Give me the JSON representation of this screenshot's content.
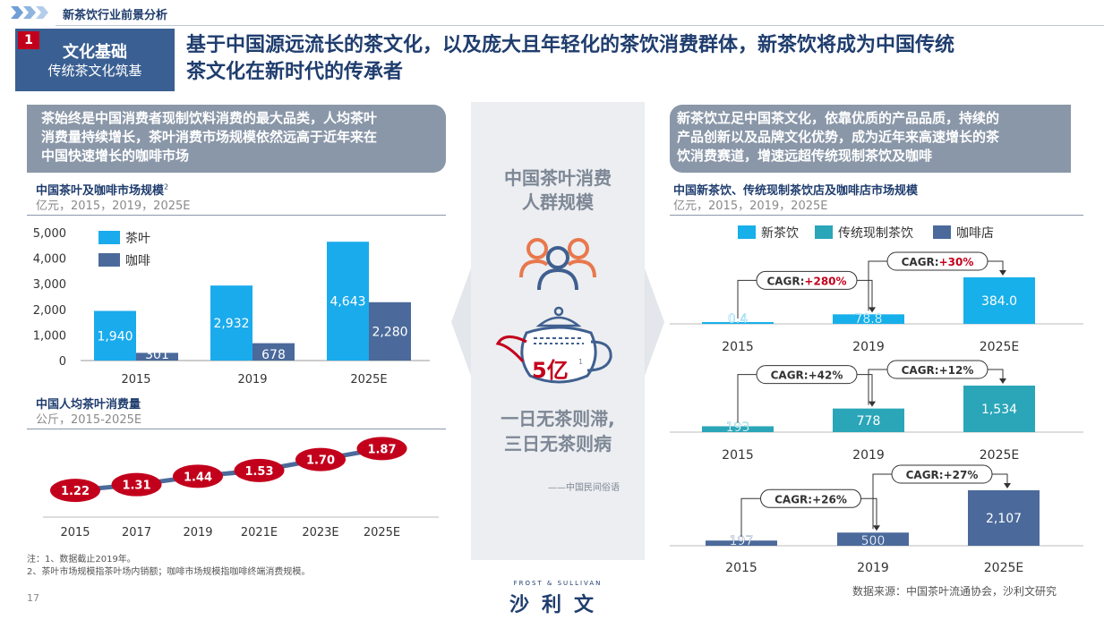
{
  "header": {
    "section_label": "新茶饮行业前景分析",
    "badge_number": "1",
    "badge_title": "文化基础",
    "badge_subtitle": "传统茶文化筑基",
    "headline_line1": "基于中国源远流长的茶文化，以及庞大且年轻化的茶饮消费群体，新茶饮将成为中国传统",
    "headline_line2": "茶文化在新时代的传承者"
  },
  "left": {
    "callout_line1": "茶始终是中国消费者现制饮料消费的最大品类，人均茶叶",
    "callout_line2": "消费量持续增长，茶叶消费市场规模依然远高于近年来在",
    "callout_line3": "中国快速增长的咖啡市场",
    "chart1_title": "中国茶叶及咖啡市场规模",
    "chart1_title_sup": "2",
    "chart1_unit": "亿元，2015，2019，2025E",
    "chart2_title": "中国人均茶叶消费量",
    "chart2_unit": "公斤，2015-2025E"
  },
  "center": {
    "title_line1": "中国茶叶消费",
    "title_line2": "人群规模",
    "value": "5亿",
    "value_sup": "1",
    "saying_line1": "一日无茶则滞,",
    "saying_line2": "三日无茶则病",
    "source": "——中国民间俗语"
  },
  "right": {
    "callout_line1": "新茶饮立足中国茶文化，依靠优质的产品品质，持续的",
    "callout_line2": "产品创新以及品牌文化优势，成为近年来高速增长的茶",
    "callout_line3": "饮消费赛道，增速远超传统现制茶饮及咖啡",
    "chart_title": "中国新茶饮、传统现制茶饮店及咖啡店市场规模",
    "chart_unit": "亿元，2015，2019，2025E"
  },
  "footer": {
    "note1": "注：1、数据截止2019年。",
    "note2": "2、茶叶市场规模指茶叶场内销额；咖啡市场规模指咖啡终端消费规模。",
    "page_number": "17",
    "source": "数据来源：中国茶叶流通协会，沙利文研究",
    "logo_wordmark": "FROST & SULLIVAN",
    "logo_cn": "沙利文"
  },
  "colors": {
    "tea": "#1aabec",
    "coffee": "#4b6a9b",
    "new_tea": "#17b0ea",
    "traditional_tea": "#2aa6b8",
    "coffee_shop": "#4b6a9b",
    "ellipse": "#c3001c",
    "accent": "#1f3d6e"
  },
  "chart_data": [
    {
      "type": "bar",
      "title": "中国茶叶及咖啡市场规模",
      "categories": [
        "2015",
        "2019",
        "2025E"
      ],
      "series": [
        {
          "name": "茶叶",
          "values": [
            1940,
            2932,
            4643
          ],
          "labels": [
            "1,940",
            "2,932",
            "4,643"
          ]
        },
        {
          "name": "咖啡",
          "values": [
            301,
            678,
            2280
          ],
          "labels": [
            "301",
            "678",
            "2,280"
          ]
        }
      ],
      "yticks": [
        "0",
        "1,000",
        "2,000",
        "3,000",
        "4,000",
        "5,000"
      ],
      "ylim": [
        0,
        5000
      ],
      "legend": "top-left"
    },
    {
      "type": "line",
      "title": "中国人均茶叶消费量",
      "x": [
        "2015",
        "2017",
        "2019",
        "2021E",
        "2023E",
        "2025E"
      ],
      "values": [
        1.22,
        1.31,
        1.44,
        1.53,
        1.7,
        1.87
      ],
      "labels": [
        "1.22",
        "1.31",
        "1.44",
        "1.53",
        "1.70",
        "1.87"
      ]
    },
    {
      "type": "bar",
      "title": "中国新茶饮、传统现制茶饮店及咖啡店市场规模",
      "legend_items": [
        "新茶饮",
        "传统现制茶饮",
        "咖啡店"
      ],
      "panels": [
        {
          "name": "新茶饮",
          "categories": [
            "2015",
            "2019",
            "2025E"
          ],
          "values": [
            0.4,
            78.8,
            384.0
          ],
          "labels": [
            "0.4",
            "78.8",
            "384.0"
          ],
          "cagr": [
            {
              "prefix": "CAGR:",
              "value": "+280%",
              "highlight": true
            },
            {
              "prefix": "CAGR:",
              "value": "+30%",
              "highlight": true
            }
          ]
        },
        {
          "name": "传统现制茶饮",
          "categories": [
            "2015",
            "2019",
            "2025E"
          ],
          "values": [
            193,
            778,
            1534
          ],
          "labels": [
            "193",
            "778",
            "1,534"
          ],
          "cagr": [
            {
              "prefix": "CAGR:",
              "value": "+42%",
              "highlight": false
            },
            {
              "prefix": "CAGR:",
              "value": "+12%",
              "highlight": false
            }
          ]
        },
        {
          "name": "咖啡店",
          "categories": [
            "2015",
            "2019",
            "2025E"
          ],
          "values": [
            197,
            500,
            2107
          ],
          "labels": [
            "197",
            "500",
            "2,107"
          ],
          "cagr": [
            {
              "prefix": "CAGR:",
              "value": "+26%",
              "highlight": false
            },
            {
              "prefix": "CAGR:",
              "value": "+27%",
              "highlight": false
            }
          ]
        }
      ]
    }
  ]
}
